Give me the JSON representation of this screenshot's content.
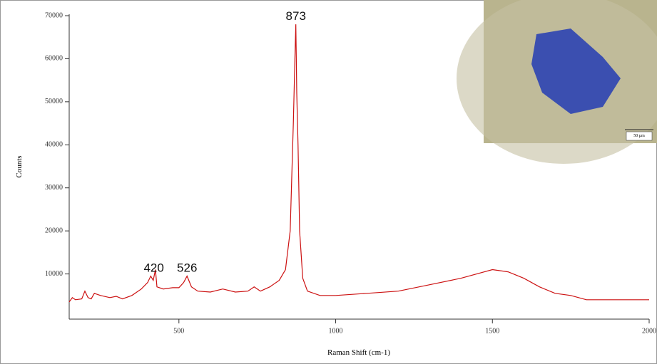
{
  "chart_data": {
    "type": "line",
    "y_label": "Counts",
    "x_label": "Raman Shift (cm-1)",
    "annotations": [
      {
        "text": "873",
        "x": 873,
        "y": 68000
      },
      {
        "text": "420",
        "x": 420,
        "y": 9500
      },
      {
        "text": "526",
        "x": 526,
        "y": 9500
      }
    ],
    "xlim": [
      150,
      2000
    ],
    "xticks": [
      500,
      1000,
      1500,
      2000
    ],
    "ylim": [
      0,
      70000
    ],
    "yticks": [
      10000,
      20000,
      30000,
      40000,
      50000,
      60000,
      70000
    ],
    "inset_scale_bar": "50 µm",
    "series": [
      {
        "color": "#cc1111",
        "x": [
          150,
          160,
          170,
          190,
          200,
          210,
          220,
          230,
          250,
          280,
          300,
          320,
          350,
          380,
          400,
          410,
          418,
          425,
          430,
          450,
          480,
          500,
          515,
          526,
          540,
          560,
          600,
          640,
          680,
          720,
          740,
          760,
          790,
          820,
          840,
          855,
          865,
          870,
          873,
          876,
          880,
          885,
          895,
          910,
          950,
          1000,
          1100,
          1200,
          1300,
          1400,
          1500,
          1550,
          1600,
          1650,
          1700,
          1750,
          1800,
          1850,
          1900,
          2000
        ],
        "values": [
          3500,
          4500,
          4000,
          4200,
          6000,
          4500,
          4200,
          5500,
          5000,
          4500,
          4800,
          4200,
          5000,
          6500,
          8000,
          9500,
          8500,
          11000,
          7000,
          6500,
          6800,
          6800,
          8000,
          9500,
          7000,
          6000,
          5800,
          6500,
          5800,
          6000,
          7000,
          6000,
          7000,
          8500,
          11000,
          20000,
          45000,
          60000,
          68000,
          52000,
          40000,
          20000,
          9000,
          6000,
          5000,
          5000,
          5500,
          6000,
          7500,
          9000,
          11000,
          10500,
          9000,
          7000,
          5500,
          5000,
          4000,
          4000,
          4000,
          4000
        ]
      }
    ]
  }
}
